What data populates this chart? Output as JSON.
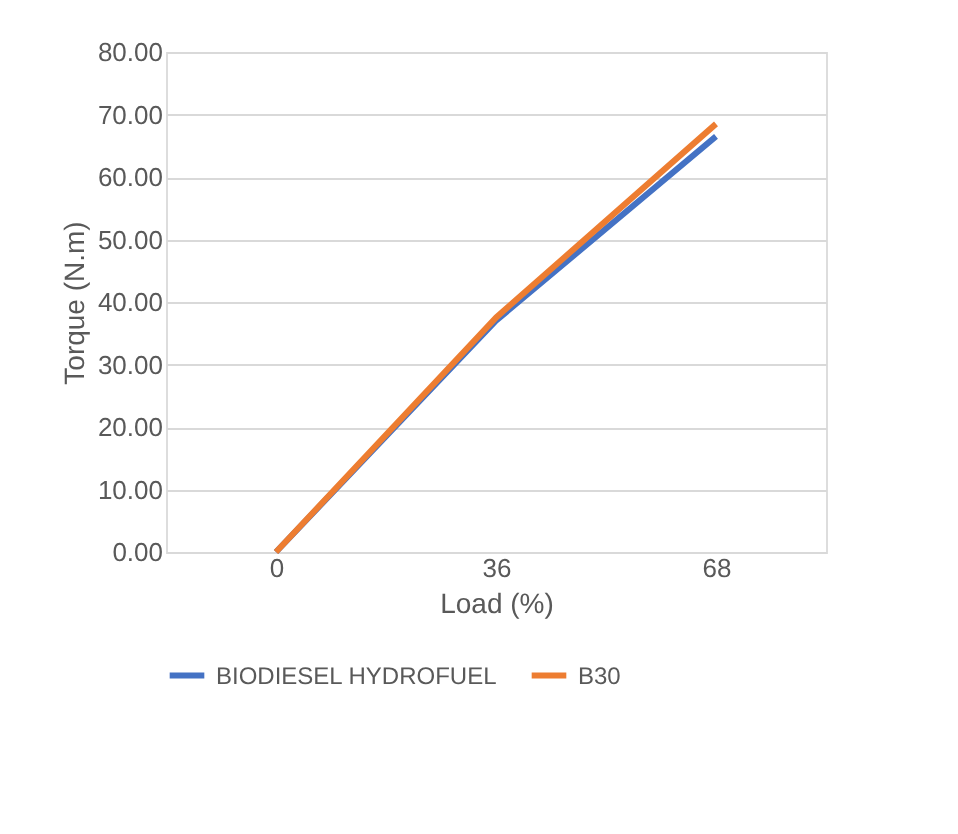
{
  "chart_data": {
    "type": "line",
    "xlabel": "Load (%)",
    "ylabel": "Torque (N.m)",
    "categories": [
      "0",
      "36",
      "68"
    ],
    "series": [
      {
        "name": "BIODIESEL HYDROFUEL",
        "color": "#4472c4",
        "values": [
          0,
          37,
          66.5
        ]
      },
      {
        "name": "B30",
        "color": "#ed7d31",
        "values": [
          0,
          37.5,
          68.5
        ]
      }
    ],
    "ylim": [
      0,
      80
    ],
    "yticks": [
      {
        "value": 0,
        "label": "0.00"
      },
      {
        "value": 10,
        "label": "10.00"
      },
      {
        "value": 20,
        "label": "20.00"
      },
      {
        "value": 30,
        "label": "30.00"
      },
      {
        "value": 40,
        "label": "40.00"
      },
      {
        "value": 50,
        "label": "50.00"
      },
      {
        "value": 60,
        "label": "60.00"
      },
      {
        "value": 70,
        "label": "70.00"
      },
      {
        "value": 80,
        "label": "80.00"
      }
    ],
    "grid": "y",
    "legend": "bottom",
    "marker": "none",
    "line_style": "solid"
  }
}
